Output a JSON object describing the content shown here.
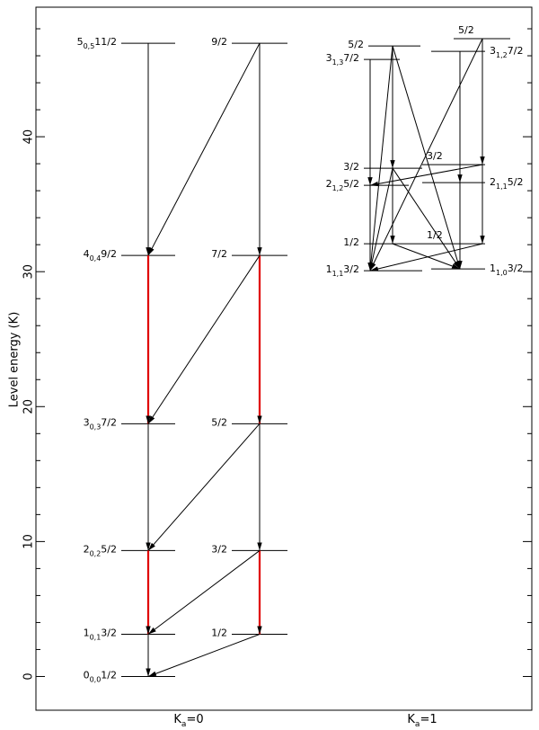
{
  "chart_data": {
    "type": "level-diagram",
    "ylabel": "Level energy (K)",
    "ylim": [
      -2.5,
      49.6
    ],
    "yticks": [
      0,
      10,
      20,
      30,
      40
    ],
    "minor_yticks": [
      2,
      4,
      6,
      8,
      12,
      14,
      16,
      18,
      22,
      24,
      26,
      28,
      32,
      34,
      36,
      38,
      42,
      44,
      46,
      48
    ],
    "groups": [
      {
        "symbol": "K",
        "subscript": "a",
        "value": "=0"
      },
      {
        "symbol": "K",
        "subscript": "a",
        "value": "=1"
      }
    ],
    "levels": [
      {
        "n": "0",
        "sub": "0,0",
        "f": "1/2",
        "energy": 0
      },
      {
        "n": "1",
        "sub": "0,1",
        "f": "3/2",
        "energy": 3.13
      },
      {
        "f": "1/2",
        "energy": 3.13
      },
      {
        "n": "2",
        "sub": "0,2",
        "f": "5/2",
        "energy": 9.33
      },
      {
        "f": "3/2",
        "energy": 9.33
      },
      {
        "n": "3",
        "sub": "0,3",
        "f": "7/2",
        "energy": 18.73
      },
      {
        "f": "5/2",
        "energy": 18.73
      },
      {
        "n": "4",
        "sub": "0,4",
        "f": "9/2",
        "energy": 31.2
      },
      {
        "f": "7/2",
        "energy": 31.2
      },
      {
        "n": "5",
        "sub": "0,5",
        "f": "11/2",
        "energy": 46.93
      },
      {
        "f": "9/2",
        "energy": 46.93
      },
      {
        "n": "1",
        "sub": "1,1",
        "f": "3/2",
        "energy": 30.07
      },
      {
        "f": "1/2",
        "energy": 32.07
      },
      {
        "n": "2",
        "sub": "1,2",
        "f": "5/2",
        "energy": 36.4
      },
      {
        "f": "3/2",
        "energy": 37.67
      },
      {
        "n": "3",
        "sub": "1,3",
        "f": "7/2",
        "energy": 45.73
      },
      {
        "f": "5/2",
        "energy": 46.73
      },
      {
        "n": "1",
        "sub": "1,0",
        "f": "3/2",
        "energy": 30.2
      },
      {
        "f": "1/2",
        "energy": 32.07
      },
      {
        "n": "2",
        "sub": "1,1",
        "f": "5/2",
        "energy": 36.6
      },
      {
        "f": "3/2",
        "energy": 37.93
      },
      {
        "n": "3",
        "sub": "1,2",
        "f": "7/2",
        "energy": 46.33
      },
      {
        "f": "5/2",
        "energy": 47.27
      }
    ],
    "transitions": [
      {
        "from": 9,
        "to": 7,
        "color": "#000000"
      },
      {
        "from": 10,
        "to": 8,
        "color": "#000000"
      },
      {
        "from": 10,
        "to": 7,
        "color": "#000000"
      },
      {
        "from": 7,
        "to": 5,
        "color": "#e00000"
      },
      {
        "from": 8,
        "to": 6,
        "color": "#e00000"
      },
      {
        "from": 8,
        "to": 5,
        "color": "#000000"
      },
      {
        "from": 5,
        "to": 3,
        "color": "#000000"
      },
      {
        "from": 6,
        "to": 4,
        "color": "#000000"
      },
      {
        "from": 6,
        "to": 3,
        "color": "#000000"
      },
      {
        "from": 3,
        "to": 1,
        "color": "#e00000"
      },
      {
        "from": 4,
        "to": 2,
        "color": "#e00000"
      },
      {
        "from": 4,
        "to": 1,
        "color": "#000000"
      },
      {
        "from": 1,
        "to": 0,
        "color": "#000000"
      },
      {
        "from": 2,
        "to": 0,
        "color": "#000000"
      },
      {
        "from": 15,
        "to": 13,
        "color": "#000000"
      },
      {
        "from": 13,
        "to": 11,
        "color": "#000000"
      },
      {
        "from": 16,
        "to": 14,
        "color": "#000000"
      },
      {
        "from": 14,
        "to": 12,
        "color": "#000000"
      },
      {
        "from": 16,
        "to": 11,
        "color": "#000000"
      },
      {
        "from": 16,
        "to": 17,
        "color": "#000000"
      },
      {
        "from": 14,
        "to": 11,
        "color": "#000000"
      },
      {
        "from": 12,
        "to": 17,
        "color": "#000000"
      },
      {
        "from": 22,
        "to": 20,
        "color": "#000000"
      },
      {
        "from": 20,
        "to": 18,
        "color": "#000000"
      },
      {
        "from": 21,
        "to": 19,
        "color": "#000000"
      },
      {
        "from": 19,
        "to": 17,
        "color": "#000000"
      },
      {
        "from": 22,
        "to": 11,
        "color": "#000000"
      },
      {
        "from": 20,
        "to": 13,
        "color": "#000000"
      },
      {
        "from": 18,
        "to": 11,
        "color": "#000000"
      },
      {
        "from": 14,
        "to": 17,
        "color": "#000000"
      }
    ]
  }
}
